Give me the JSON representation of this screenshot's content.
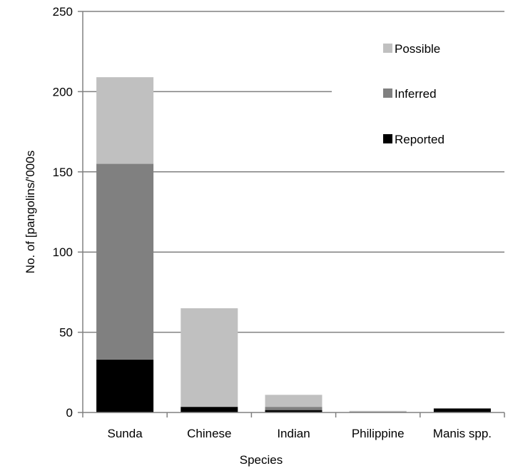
{
  "chart_data": {
    "type": "bar",
    "stacked": true,
    "categories": [
      "Sunda",
      "Chinese",
      "Indian",
      "Philippine",
      "Manis spp."
    ],
    "series": [
      {
        "name": "Reported",
        "color": "#000000",
        "values": [
          33,
          3.5,
          1.5,
          0.2,
          2.5
        ]
      },
      {
        "name": "Inferred",
        "color": "#808080",
        "values": [
          122,
          0,
          2,
          0.3,
          0
        ]
      },
      {
        "name": "Possible",
        "color": "#c0c0c0",
        "values": [
          54,
          61.5,
          7.5,
          0.5,
          0
        ]
      }
    ],
    "xlabel": "Species",
    "ylabel": "No. of [pangolins/'000s",
    "ylim": [
      0,
      250
    ],
    "yticks": [
      0,
      50,
      100,
      150,
      200,
      250
    ],
    "grid": "horizontal",
    "legend": {
      "placement": "top-right",
      "order": [
        "Possible",
        "Inferred",
        "Reported"
      ]
    }
  }
}
